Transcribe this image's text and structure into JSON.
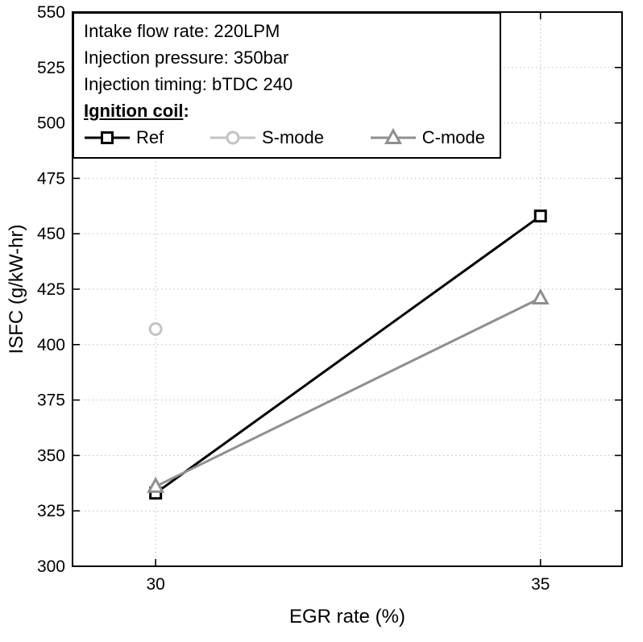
{
  "chart_data": {
    "type": "line",
    "title": "",
    "xlabel": "EGR rate (%)",
    "ylabel": "ISFC (g/kW-hr)",
    "xlim": [
      28.92,
      36.06
    ],
    "ylim": [
      300,
      550
    ],
    "xticks": [
      30,
      35
    ],
    "yticks": [
      300,
      325,
      350,
      375,
      400,
      425,
      450,
      475,
      500,
      525,
      550
    ],
    "grid": "dotted",
    "legend_position": "top-left",
    "series": [
      {
        "name": "Ref",
        "marker": "square",
        "color": "#000000",
        "x": [
          30,
          35
        ],
        "y": [
          333,
          458
        ]
      },
      {
        "name": "S-mode",
        "marker": "circle",
        "color": "#c3c3c3",
        "x": [
          30
        ],
        "y": [
          407
        ]
      },
      {
        "name": "C-mode",
        "marker": "triangle",
        "color": "#8f8f8f",
        "x": [
          30,
          35
        ],
        "y": [
          336,
          421
        ]
      }
    ],
    "annotation": {
      "lines": [
        "Intake flow rate: 220LPM",
        "Injection pressure: 350bar",
        "Injection timing: bTDC 240"
      ],
      "legend_title": "Ignition coil",
      "legend_title_suffix": ":"
    }
  }
}
